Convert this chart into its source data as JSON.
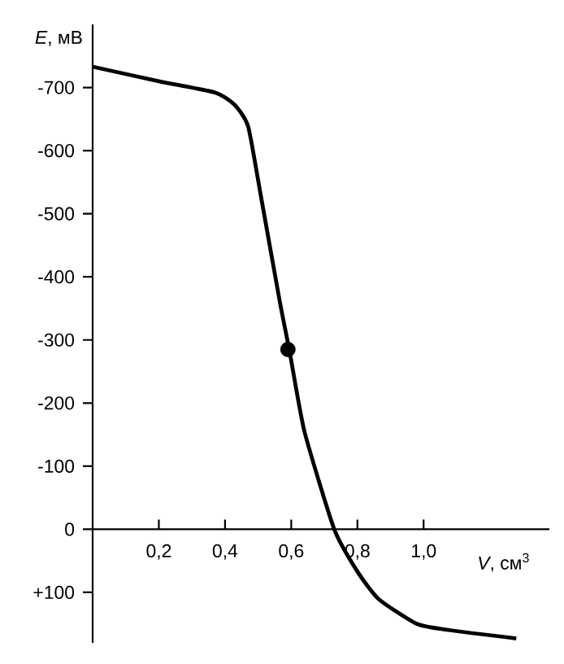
{
  "chart_data": {
    "type": "line",
    "xlabel": "*V*, см$^{3}$",
    "ylabel": "*E*, мВ",
    "xlim": [
      0,
      1.38
    ],
    "ylim": [
      180,
      -800
    ],
    "xticks": [
      {
        "value": 0.2,
        "label": "0,2"
      },
      {
        "value": 0.4,
        "label": "0,4"
      },
      {
        "value": 0.6,
        "label": "0,6"
      },
      {
        "value": 0.8,
        "label": "0,8"
      },
      {
        "value": 1.0,
        "label": "1,0"
      }
    ],
    "yticks": [
      -700,
      -600,
      -500,
      -400,
      -300,
      -200,
      -100,
      0,
      {
        "value": 100,
        "label": "+100"
      }
    ],
    "series": [
      {
        "color": "#000000",
        "marker": "none",
        "x": [
          0,
          0.2,
          0.37,
          0.43,
          0.47,
          0.506,
          0.565,
          0.595,
          0.64,
          0.73,
          0.8,
          0.865,
          0.98,
          1.08,
          1.28
        ],
        "values": [
          -733,
          -710,
          -692,
          -672,
          -638,
          -535,
          -362,
          -282,
          -155,
          0,
          67,
          111,
          150,
          160,
          173
        ]
      },
      {
        "type": "scatter",
        "color": "#000000",
        "marker": "circle",
        "x": [
          0.59
        ],
        "values": [
          -285
        ]
      }
    ]
  }
}
